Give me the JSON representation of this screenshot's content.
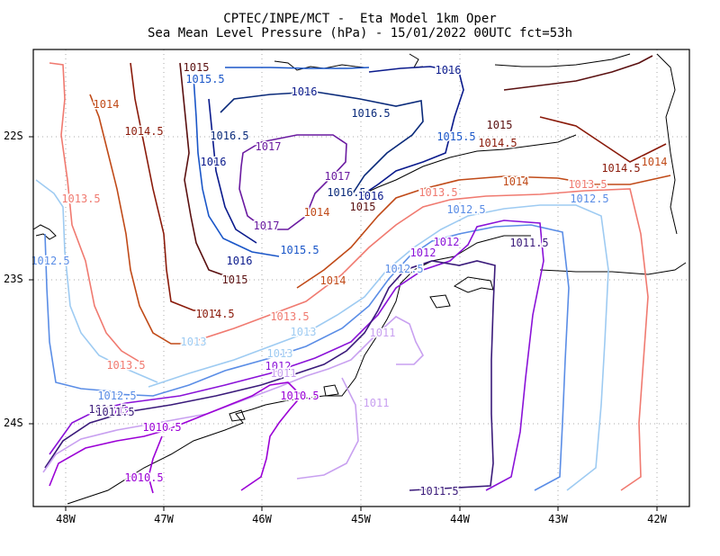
{
  "title_line1": "CPTEC/INPE/MCT -  Eta Model 1km Oper",
  "title_line2": "Sea Mean Level Pressure (hPa) - 15/01/2022 00UTC fct=53h",
  "x_ticks": [
    "48W",
    "47W",
    "46W",
    "45W",
    "44W",
    "43W",
    "42W"
  ],
  "y_ticks": [
    "22S",
    "23S",
    "24S"
  ],
  "contour_colors": {
    "1010.5": "#9b00d6",
    "1011": "#c8a0f0",
    "1011.5": "#3a1a7a",
    "1012": "#8a12d8",
    "1012.5": "#5a8de6",
    "1013": "#9ecbf2",
    "1013.5": "#f07a70",
    "1014": "#c04a18",
    "1014.5": "#8a1a0a",
    "1015": "#5a1010",
    "1015.5": "#1a56c8",
    "1016": "#0a1a8c",
    "1016.5": "#0a2a7a",
    "1017": "#6a1aa0"
  },
  "contour_labels": [
    {
      "text": "1015",
      "level": "1015"
    },
    {
      "text": "1015.5",
      "level": "1015.5"
    },
    {
      "text": "1016",
      "level": "1016"
    },
    {
      "text": "1016",
      "level": "1016"
    },
    {
      "text": "1016.5",
      "level": "1016.5"
    },
    {
      "text": "1016.5",
      "level": "1016.5"
    },
    {
      "text": "1017",
      "level": "1017"
    },
    {
      "text": "1016",
      "level": "1016"
    },
    {
      "text": "1017",
      "level": "1017"
    },
    {
      "text": "1016.5",
      "level": "1016.5"
    },
    {
      "text": "1016",
      "level": "1016"
    },
    {
      "text": "1014",
      "level": "1014"
    },
    {
      "text": "1015",
      "level": "1015"
    },
    {
      "text": "1017",
      "level": "1017"
    },
    {
      "text": "1015.5",
      "level": "1015.5"
    },
    {
      "text": "1016",
      "level": "1016"
    },
    {
      "text": "1015",
      "level": "1015"
    },
    {
      "text": "1014.5",
      "level": "1014.5"
    },
    {
      "text": "1015.5",
      "level": "1015.5"
    },
    {
      "text": "1015",
      "level": "1015"
    },
    {
      "text": "1014.5",
      "level": "1014.5"
    },
    {
      "text": "1014",
      "level": "1014"
    },
    {
      "text": "1014.5",
      "level": "1014.5"
    },
    {
      "text": "1014",
      "level": "1014"
    },
    {
      "text": "1013.5",
      "level": "1013.5"
    },
    {
      "text": "1013.5",
      "level": "1013.5"
    },
    {
      "text": "1013.5",
      "level": "1013.5"
    },
    {
      "text": "1014",
      "level": "1014"
    },
    {
      "text": "1014.5",
      "level": "1014.5"
    },
    {
      "text": "1013.5",
      "level": "1013.5"
    },
    {
      "text": "1014",
      "level": "1014"
    },
    {
      "text": "1013.5",
      "level": "1013.5"
    },
    {
      "text": "1013",
      "level": "1013"
    },
    {
      "text": "1012.5",
      "level": "1012.5"
    },
    {
      "text": "1012.5",
      "level": "1012.5"
    },
    {
      "text": "1012",
      "level": "1012"
    },
    {
      "text": "1012",
      "level": "1012"
    },
    {
      "text": "1011.5",
      "level": "1011.5"
    },
    {
      "text": "1012.5",
      "level": "1012.5"
    },
    {
      "text": "1013",
      "level": "1013"
    },
    {
      "text": "1013",
      "level": "1013"
    },
    {
      "text": "1012.5",
      "level": "1012.5"
    },
    {
      "text": "1012",
      "level": "1012"
    },
    {
      "text": "1011.5",
      "level": "1011.5"
    },
    {
      "text": "1011",
      "level": "1011"
    },
    {
      "text": "1012.5",
      "level": "1012.5"
    },
    {
      "text": "1012",
      "level": "1012"
    },
    {
      "text": "1011.5",
      "level": "1011.5"
    },
    {
      "text": "1010.5",
      "level": "1010.5"
    },
    {
      "text": "1011",
      "level": "1011"
    },
    {
      "text": "1011",
      "level": "1011"
    },
    {
      "text": "1010.5",
      "level": "1010.5"
    },
    {
      "text": "1010.5",
      "level": "1010.5"
    },
    {
      "text": "1011.5",
      "level": "1011.5"
    }
  ]
}
